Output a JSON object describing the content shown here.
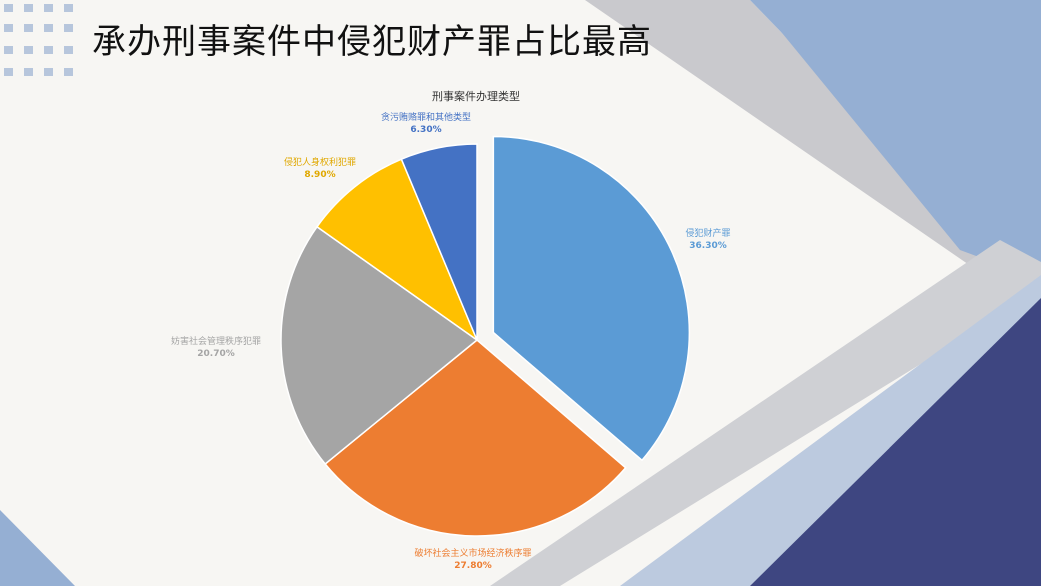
{
  "slide": {
    "title": "承办刑事案件中侵犯财产罪占比最高"
  },
  "colors": {
    "background": "#f7f6f3",
    "shape_light_blue": "#94aed2",
    "shape_dark_navy": "#3e4681",
    "shape_grey": "#c7c7cb",
    "shape_pale_blue": "#bcc9df",
    "dots": "#b7c6dc"
  },
  "chart_data": {
    "type": "pie",
    "title": "刑事案件办理类型",
    "slices": [
      {
        "label": "侵犯财产罪",
        "value": 36.3,
        "value_text": "36.30%",
        "color": "#5b9bd5",
        "label_color": "#5b9bd5",
        "exploded": true
      },
      {
        "label": "破坏社会主义市场经济秩序罪",
        "value": 27.8,
        "value_text": "27.80%",
        "color": "#ed7d31",
        "label_color": "#ed7d31",
        "exploded": false
      },
      {
        "label": "妨害社会管理秩序犯罪",
        "value": 20.7,
        "value_text": "20.70%",
        "color": "#a5a5a5",
        "label_color": "#a5a5a5",
        "exploded": false
      },
      {
        "label": "侵犯人身权利犯罪",
        "value": 8.9,
        "value_text": "8.90%",
        "color": "#ffc000",
        "label_color": "#e0a800",
        "exploded": false
      },
      {
        "label": "贪污贿赂罪和其他类型",
        "value": 6.3,
        "value_text": "6.30%",
        "color": "#4472c4",
        "label_color": "#4472c4",
        "exploded": false
      }
    ],
    "start_angle": "12 o'clock",
    "direction": "clockwise",
    "legend": "none"
  }
}
